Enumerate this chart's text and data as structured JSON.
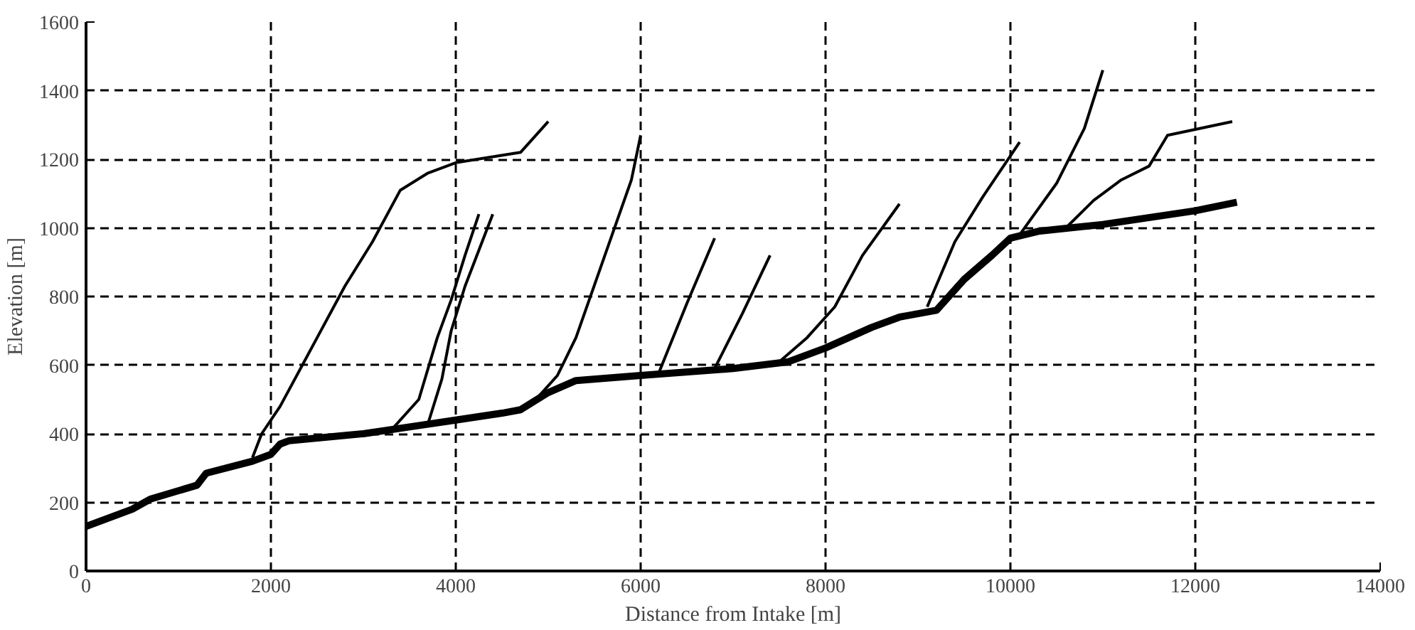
{
  "chart_data": {
    "type": "line",
    "xlabel": "Distance from Intake [m]",
    "ylabel": "Elevation [m]",
    "xlim": [
      0,
      14000
    ],
    "ylim": [
      0,
      1600
    ],
    "xticks": [
      0,
      2000,
      4000,
      6000,
      8000,
      10000,
      12000,
      14000
    ],
    "yticks": [
      0,
      200,
      400,
      600,
      800,
      1000,
      1200,
      1400,
      1600
    ],
    "grid": true,
    "marker": "none",
    "line_style": "solid",
    "series": [
      {
        "color": "#000000",
        "x": [
          0,
          500,
          700,
          1200,
          1300,
          1800,
          2000,
          2100,
          2200,
          3000,
          3500,
          4000,
          4500,
          4700,
          5000,
          5300,
          6000,
          7000,
          7600,
          8000,
          8500,
          8800,
          9200,
          9500,
          9800,
          10000,
          10300,
          11000,
          12000,
          12450
        ],
        "values": [
          130,
          180,
          210,
          250,
          285,
          320,
          340,
          370,
          380,
          400,
          420,
          440,
          460,
          470,
          520,
          555,
          570,
          590,
          610,
          650,
          710,
          740,
          760,
          850,
          920,
          970,
          990,
          1010,
          1050,
          1075
        ]
      },
      {
        "color": "#000000",
        "x": [
          1800,
          1900,
          2100,
          2500,
          2800,
          3100,
          3400,
          3700,
          4000,
          4700,
          5000
        ],
        "values": [
          330,
          400,
          480,
          680,
          830,
          960,
          1110,
          1160,
          1190,
          1220,
          1310
        ]
      },
      {
        "color": "#000000",
        "x": [
          3300,
          3600,
          3800,
          3950,
          4100,
          4250
        ],
        "values": [
          410,
          500,
          680,
          790,
          920,
          1040
        ]
      },
      {
        "color": "#000000",
        "x": [
          3700,
          3850,
          3950,
          4100,
          4400
        ],
        "values": [
          430,
          560,
          700,
          830,
          1040
        ]
      },
      {
        "color": "#000000",
        "x": [
          4800,
          5100,
          5300,
          5600,
          5900,
          6000
        ],
        "values": [
          480,
          570,
          680,
          910,
          1140,
          1270
        ]
      },
      {
        "color": "#000000",
        "x": [
          6200,
          6500,
          6800
        ],
        "values": [
          580,
          780,
          970
        ]
      },
      {
        "color": "#000000",
        "x": [
          6800,
          7100,
          7400
        ],
        "values": [
          590,
          750,
          920
        ]
      },
      {
        "color": "#000000",
        "x": [
          7500,
          7800,
          8100,
          8400,
          8800
        ],
        "values": [
          610,
          680,
          770,
          920,
          1070
        ]
      },
      {
        "color": "#000000",
        "x": [
          9100,
          9400,
          9700,
          10100
        ],
        "values": [
          770,
          960,
          1090,
          1250
        ]
      },
      {
        "color": "#000000",
        "x": [
          10100,
          10500,
          10800,
          11000
        ],
        "values": [
          980,
          1130,
          1290,
          1460
        ]
      },
      {
        "color": "#000000",
        "x": [
          10600,
          10900,
          11200,
          11500,
          11700,
          12400
        ],
        "values": [
          1000,
          1080,
          1140,
          1180,
          1270,
          1310
        ]
      }
    ]
  }
}
